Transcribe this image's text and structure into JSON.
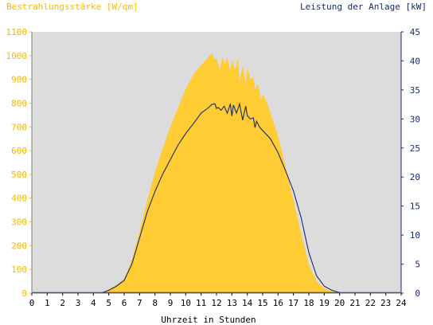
{
  "chart_data": {
    "type": "area",
    "title": "",
    "left_axis_label": "Bestrahlungsstärke [W/qm]",
    "right_axis_label": "Leistung der Anlage [kW]",
    "xlabel": "Uhrzeit in Stunden",
    "xlim": [
      0,
      24
    ],
    "ylim_left": [
      0,
      1100
    ],
    "ylim_right": [
      0,
      45
    ],
    "x_ticks": [
      "0",
      "1",
      "2",
      "3",
      "4",
      "5",
      "6",
      "7",
      "8",
      "9",
      "10",
      "11",
      "12",
      "13",
      "14",
      "15",
      "16",
      "17",
      "18",
      "19",
      "20",
      "21",
      "22",
      "23",
      "24"
    ],
    "y_left_ticks": [
      "0",
      "100",
      "200",
      "300",
      "400",
      "500",
      "600",
      "700",
      "800",
      "900",
      "1000",
      "1100"
    ],
    "y_right_ticks": [
      "0",
      "5",
      "10",
      "15",
      "20",
      "25",
      "30",
      "35",
      "40",
      "45"
    ],
    "grid": false,
    "colors": {
      "irradiance": "#ffcc33",
      "power": "#1a2b6b",
      "left_axis": "#f5b800",
      "right_axis": "#1a2b6b",
      "plot_background": "#dcdcdc"
    },
    "series": [
      {
        "name": "Bestrahlungsstärke [W/qm]",
        "axis": "left",
        "style": "filled-area",
        "x": [
          4.5,
          5,
          5.5,
          6,
          6.5,
          7,
          7.5,
          8,
          8.5,
          9,
          9.5,
          10,
          10.5,
          11,
          11.5,
          11.7,
          11.9,
          12,
          12.2,
          12.4,
          12.5,
          12.7,
          12.9,
          13,
          13.2,
          13.4,
          13.5,
          13.7,
          13.9,
          14,
          14.2,
          14.4,
          14.5,
          14.7,
          14.9,
          15,
          15.3,
          15.5,
          16,
          16.5,
          17,
          17.5,
          18,
          18.5,
          19,
          19.5,
          20,
          20.3
        ],
        "y": [
          0,
          15,
          35,
          60,
          140,
          260,
          390,
          510,
          610,
          700,
          780,
          860,
          920,
          960,
          995,
          1010,
          980,
          990,
          940,
          1000,
          960,
          995,
          930,
          985,
          940,
          990,
          890,
          960,
          880,
          950,
          900,
          910,
          860,
          880,
          810,
          840,
          800,
          760,
          660,
          530,
          390,
          250,
          120,
          50,
          20,
          8,
          2,
          0
        ]
      },
      {
        "name": "Leistung der Anlage [kW]",
        "axis": "right",
        "style": "line",
        "x": [
          4.5,
          5,
          5.5,
          6,
          6.5,
          7,
          7.5,
          8,
          8.5,
          9,
          9.5,
          10,
          10.5,
          11,
          11.5,
          11.7,
          11.9,
          12,
          12.1,
          12.3,
          12.5,
          12.7,
          12.9,
          13,
          13.1,
          13.3,
          13.5,
          13.7,
          13.9,
          14,
          14.2,
          14.4,
          14.5,
          14.6,
          14.8,
          15,
          15.5,
          16,
          16.5,
          17,
          17.5,
          18,
          18.5,
          19,
          19.5,
          20,
          20.3
        ],
        "y": [
          0,
          0.5,
          1.2,
          2.2,
          5,
          9.5,
          14,
          17.5,
          20.5,
          23,
          25.5,
          27.5,
          29.2,
          31,
          32,
          32.5,
          32.6,
          31.8,
          32,
          31.5,
          32.2,
          31,
          32.6,
          30.5,
          32.4,
          31,
          32.6,
          29.8,
          32.2,
          30.6,
          30,
          30.2,
          28.5,
          29.6,
          28.6,
          28,
          26.6,
          24.2,
          21,
          17.6,
          13,
          7,
          3,
          1.2,
          0.5,
          0.1,
          0
        ]
      }
    ]
  }
}
